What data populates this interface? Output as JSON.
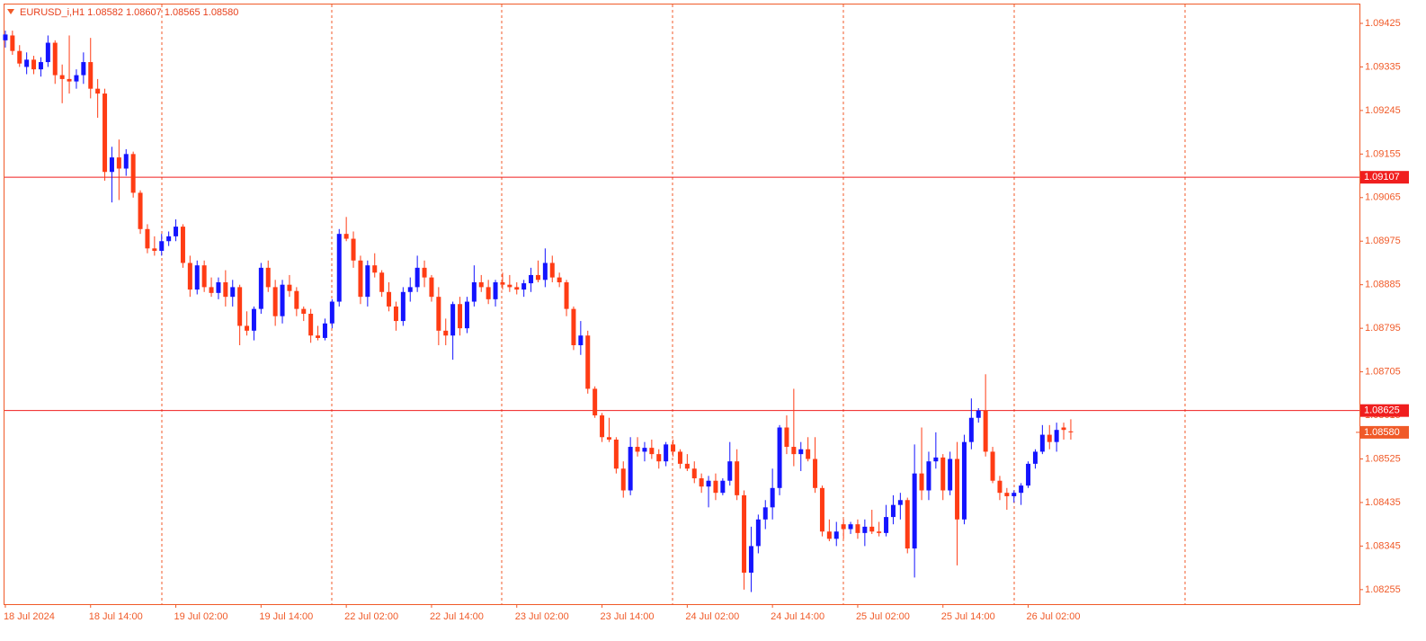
{
  "chart_data": {
    "type": "candlestick",
    "title": "EURUSD_i,H1  1.08582 1.08607 1.08565 1.08580",
    "up_color": "#1414ff",
    "down_color": "#ff3c14",
    "axis_color": "#f05a28",
    "grid": true,
    "ylim": [
      1.08225,
      1.09464
    ],
    "yticks": [
      1.09425,
      1.09335,
      1.09245,
      1.09155,
      1.09065,
      1.08975,
      1.08885,
      1.08795,
      1.08705,
      1.08615,
      1.08525,
      1.08435,
      1.08345,
      1.08255
    ],
    "levels": [
      1.09107,
      1.08625
    ],
    "bid": {
      "value": 1.0858,
      "label": "1.08580"
    },
    "categories": [
      "18 Jul 2024",
      null,
      null,
      null,
      null,
      null,
      null,
      null,
      null,
      null,
      null,
      null,
      "18 Jul 14:00",
      null,
      null,
      null,
      null,
      null,
      null,
      null,
      null,
      null,
      null,
      null,
      "19 Jul 02:00",
      null,
      null,
      null,
      null,
      null,
      null,
      null,
      null,
      null,
      null,
      null,
      "19 Jul 14:00",
      null,
      null,
      null,
      null,
      null,
      null,
      null,
      null,
      null,
      null,
      null,
      "22 Jul 02:00",
      null,
      null,
      null,
      null,
      null,
      null,
      null,
      null,
      null,
      null,
      null,
      "22 Jul 14:00",
      null,
      null,
      null,
      null,
      null,
      null,
      null,
      null,
      null,
      null,
      null,
      "23 Jul 02:00",
      null,
      null,
      null,
      null,
      null,
      null,
      null,
      null,
      null,
      null,
      null,
      "23 Jul 14:00",
      null,
      null,
      null,
      null,
      null,
      null,
      null,
      null,
      null,
      null,
      null,
      "24 Jul 02:00",
      null,
      null,
      null,
      null,
      null,
      null,
      null,
      null,
      null,
      null,
      null,
      "24 Jul 14:00",
      null,
      null,
      null,
      null,
      null,
      null,
      null,
      null,
      null,
      null,
      null,
      "25 Jul 02:00",
      null,
      null,
      null,
      null,
      null,
      null,
      null,
      null,
      null,
      null,
      null,
      "25 Jul 14:00",
      null,
      null,
      null,
      null,
      null,
      null,
      null,
      null,
      null,
      null,
      null,
      "26 Jul 02:00",
      null,
      null,
      null,
      null,
      null,
      null
    ],
    "open": [
      1.0939,
      1.094,
      1.09368,
      1.09335,
      1.0935,
      1.0933,
      1.09345,
      1.09385,
      1.09318,
      1.0931,
      1.09305,
      1.09318,
      1.09345,
      1.0929,
      1.0928,
      1.09118,
      1.09148,
      1.09125,
      1.09155,
      1.09075,
      1.09,
      1.0896,
      1.08955,
      1.08975,
      1.08985,
      1.09005,
      1.0893,
      1.08875,
      1.08925,
      1.0888,
      1.08868,
      1.0889,
      1.0886,
      1.0888,
      1.088,
      1.0879,
      1.08835,
      1.0892,
      1.0888,
      1.0882,
      1.08885,
      1.08872,
      1.08835,
      1.08825,
      1.0878,
      1.08775,
      1.08805,
      1.0885,
      1.0899,
      1.0898,
      1.08935,
      1.0886,
      1.08925,
      1.0891,
      1.0887,
      1.0884,
      1.0881,
      1.0887,
      1.0888,
      1.0892,
      1.089,
      1.0886,
      1.0879,
      1.0878,
      1.08845,
      1.08795,
      1.0885,
      1.0889,
      1.0888,
      1.08855,
      1.0889,
      1.08885,
      1.0888,
      1.08875,
      1.08888,
      1.08905,
      1.08895,
      1.0893,
      1.089,
      1.0889,
      1.08835,
      1.0876,
      1.0878,
      1.0867,
      1.08615,
      1.0857,
      1.08565,
      1.08505,
      1.0846,
      1.0855,
      1.0854,
      1.08548,
      1.08535,
      1.0852,
      1.08555,
      1.0854,
      1.08515,
      1.08505,
      1.08485,
      1.08468,
      1.0848,
      1.08455,
      1.0848,
      1.0852,
      1.0845,
      1.0829,
      1.08345,
      1.084,
      1.08425,
      1.08465,
      1.0859,
      1.0855,
      1.08535,
      1.08545,
      1.08525,
      1.08465,
      1.08375,
      1.0836,
      1.0839,
      1.0838,
      1.0839,
      1.08372,
      1.08385,
      1.08375,
      1.08372,
      1.08405,
      1.0843,
      1.0844,
      1.0834,
      1.08495,
      1.0846,
      1.0852,
      1.08528,
      1.0846,
      1.08525,
      1.084,
      1.0856,
      1.0861,
      1.08625,
      1.0854,
      1.0848,
      1.08455,
      1.08448,
      1.08455,
      1.0847,
      1.08515,
      1.0854,
      1.08575,
      1.0856,
      1.0859,
      1.08582
    ],
    "high": [
      1.0941,
      1.0941,
      1.0938,
      1.09365,
      1.09358,
      1.09355,
      1.094,
      1.0939,
      1.0934,
      1.094,
      1.0933,
      1.09365,
      1.09395,
      1.0931,
      1.0929,
      1.0917,
      1.09185,
      1.09165,
      1.0916,
      1.0908,
      1.0901,
      1.08985,
      1.0899,
      1.08995,
      1.0902,
      1.0901,
      1.08945,
      1.08935,
      1.08935,
      1.089,
      1.089,
      1.08915,
      1.08895,
      1.08885,
      1.0883,
      1.0884,
      1.0893,
      1.08935,
      1.08895,
      1.08895,
      1.08905,
      1.0888,
      1.0884,
      1.08835,
      1.088,
      1.08815,
      1.08855,
      1.09,
      1.09025,
      1.08995,
      1.08945,
      1.08935,
      1.0895,
      1.08915,
      1.0889,
      1.0885,
      1.0888,
      1.089,
      1.08945,
      1.08935,
      1.08905,
      1.0888,
      1.08815,
      1.0885,
      1.0886,
      1.0886,
      1.08925,
      1.08905,
      1.08895,
      1.08895,
      1.0891,
      1.08905,
      1.0889,
      1.08895,
      1.0892,
      1.08935,
      1.0896,
      1.08945,
      1.0891,
      1.08895,
      1.0884,
      1.0881,
      1.0879,
      1.08675,
      1.0862,
      1.0861,
      1.0857,
      1.0852,
      1.0857,
      1.0857,
      1.0856,
      1.08565,
      1.08545,
      1.0856,
      1.08565,
      1.08545,
      1.08535,
      1.0852,
      1.08495,
      1.0849,
      1.08495,
      1.08485,
      1.0856,
      1.08545,
      1.0846,
      1.08385,
      1.0841,
      1.0844,
      1.08505,
      1.08595,
      1.08615,
      1.0867,
      1.0856,
      1.0857,
      1.0857,
      1.0847,
      1.084,
      1.08395,
      1.084,
      1.08395,
      1.084,
      1.084,
      1.0842,
      1.08395,
      1.0843,
      1.0845,
      1.08455,
      1.08445,
      1.08555,
      1.0859,
      1.0854,
      1.0858,
      1.08535,
      1.0854,
      1.0856,
      1.08575,
      1.0865,
      1.0863,
      1.087,
      1.0855,
      1.0849,
      1.08465,
      1.0846,
      1.08475,
      1.0852,
      1.08545,
      1.08595,
      1.08595,
      1.086,
      1.086,
      1.08607
    ],
    "low": [
      1.09375,
      1.0936,
      1.09335,
      1.0932,
      1.0932,
      1.09315,
      1.09335,
      1.093,
      1.0926,
      1.0928,
      1.0929,
      1.093,
      1.0927,
      1.0923,
      1.091,
      1.09055,
      1.0906,
      1.0911,
      1.09065,
      1.0899,
      1.0895,
      1.08945,
      1.08945,
      1.08965,
      1.08975,
      1.0892,
      1.0886,
      1.08865,
      1.0887,
      1.0886,
      1.08855,
      1.0884,
      1.0884,
      1.0876,
      1.0878,
      1.0877,
      1.08825,
      1.0887,
      1.088,
      1.08805,
      1.0886,
      1.0882,
      1.0881,
      1.08765,
      1.0877,
      1.0877,
      1.08795,
      1.0884,
      1.08975,
      1.0892,
      1.08845,
      1.0884,
      1.089,
      1.0886,
      1.0883,
      1.0879,
      1.088,
      1.0885,
      1.0887,
      1.0888,
      1.0885,
      1.0876,
      1.0876,
      1.0873,
      1.0878,
      1.08785,
      1.0884,
      1.0887,
      1.08845,
      1.0884,
      1.08875,
      1.0887,
      1.08865,
      1.0886,
      1.0887,
      1.0889,
      1.0888,
      1.0889,
      1.0888,
      1.0882,
      1.0875,
      1.0874,
      1.0866,
      1.0861,
      1.0856,
      1.0856,
      1.08495,
      1.08445,
      1.0845,
      1.0853,
      1.0852,
      1.08525,
      1.08505,
      1.0851,
      1.0853,
      1.08505,
      1.085,
      1.08475,
      1.08455,
      1.08425,
      1.0844,
      1.0845,
      1.0847,
      1.0844,
      1.08255,
      1.0825,
      1.0833,
      1.0838,
      1.084,
      1.0845,
      1.08535,
      1.0851,
      1.085,
      1.0852,
      1.08455,
      1.08365,
      1.08355,
      1.08345,
      1.0836,
      1.0837,
      1.0836,
      1.08345,
      1.0837,
      1.08365,
      1.08365,
      1.0839,
      1.084,
      1.0833,
      1.0828,
      1.0844,
      1.0844,
      1.08505,
      1.0844,
      1.0845,
      1.08305,
      1.0839,
      1.08545,
      1.086,
      1.0853,
      1.08475,
      1.0844,
      1.0842,
      1.08435,
      1.0843,
      1.08465,
      1.08505,
      1.08535,
      1.08545,
      1.0854,
      1.08565,
      1.08565
    ],
    "close": [
      1.09402,
      1.09368,
      1.09342,
      1.0935,
      1.0933,
      1.09345,
      1.09385,
      1.09318,
      1.0931,
      1.09305,
      1.09318,
      1.09345,
      1.0929,
      1.0928,
      1.09118,
      1.09148,
      1.09125,
      1.09155,
      1.09075,
      1.09,
      1.0896,
      1.08955,
      1.08975,
      1.08985,
      1.09005,
      1.0893,
      1.08875,
      1.08925,
      1.0888,
      1.08868,
      1.0889,
      1.0886,
      1.0888,
      1.088,
      1.0879,
      1.08835,
      1.0892,
      1.0888,
      1.0882,
      1.08885,
      1.08872,
      1.08835,
      1.08825,
      1.0878,
      1.08775,
      1.08805,
      1.0885,
      1.0899,
      1.0898,
      1.08935,
      1.0886,
      1.08925,
      1.0891,
      1.0887,
      1.0884,
      1.0881,
      1.0887,
      1.0888,
      1.0892,
      1.089,
      1.0886,
      1.0879,
      1.0878,
      1.08845,
      1.08795,
      1.0885,
      1.0889,
      1.0888,
      1.08855,
      1.0889,
      1.08885,
      1.0888,
      1.08875,
      1.08888,
      1.08905,
      1.08895,
      1.0893,
      1.089,
      1.0889,
      1.08835,
      1.0876,
      1.0878,
      1.0867,
      1.08615,
      1.0857,
      1.08565,
      1.08505,
      1.0846,
      1.0855,
      1.0854,
      1.08548,
      1.08535,
      1.0852,
      1.08555,
      1.0854,
      1.08515,
      1.08505,
      1.08485,
      1.08468,
      1.0848,
      1.08455,
      1.0848,
      1.0852,
      1.0845,
      1.0829,
      1.08345,
      1.084,
      1.08425,
      1.08465,
      1.0859,
      1.0855,
      1.08535,
      1.08545,
      1.08525,
      1.08465,
      1.08375,
      1.0836,
      1.08375,
      1.0838,
      1.0839,
      1.08372,
      1.08385,
      1.08375,
      1.08372,
      1.08405,
      1.0843,
      1.0844,
      1.0834,
      1.08495,
      1.0846,
      1.0852,
      1.08528,
      1.0846,
      1.08525,
      1.084,
      1.0856,
      1.0861,
      1.08625,
      1.0854,
      1.0848,
      1.08455,
      1.08448,
      1.08455,
      1.0847,
      1.08515,
      1.0854,
      1.08575,
      1.0856,
      1.08585,
      1.08585,
      1.0858
    ]
  }
}
